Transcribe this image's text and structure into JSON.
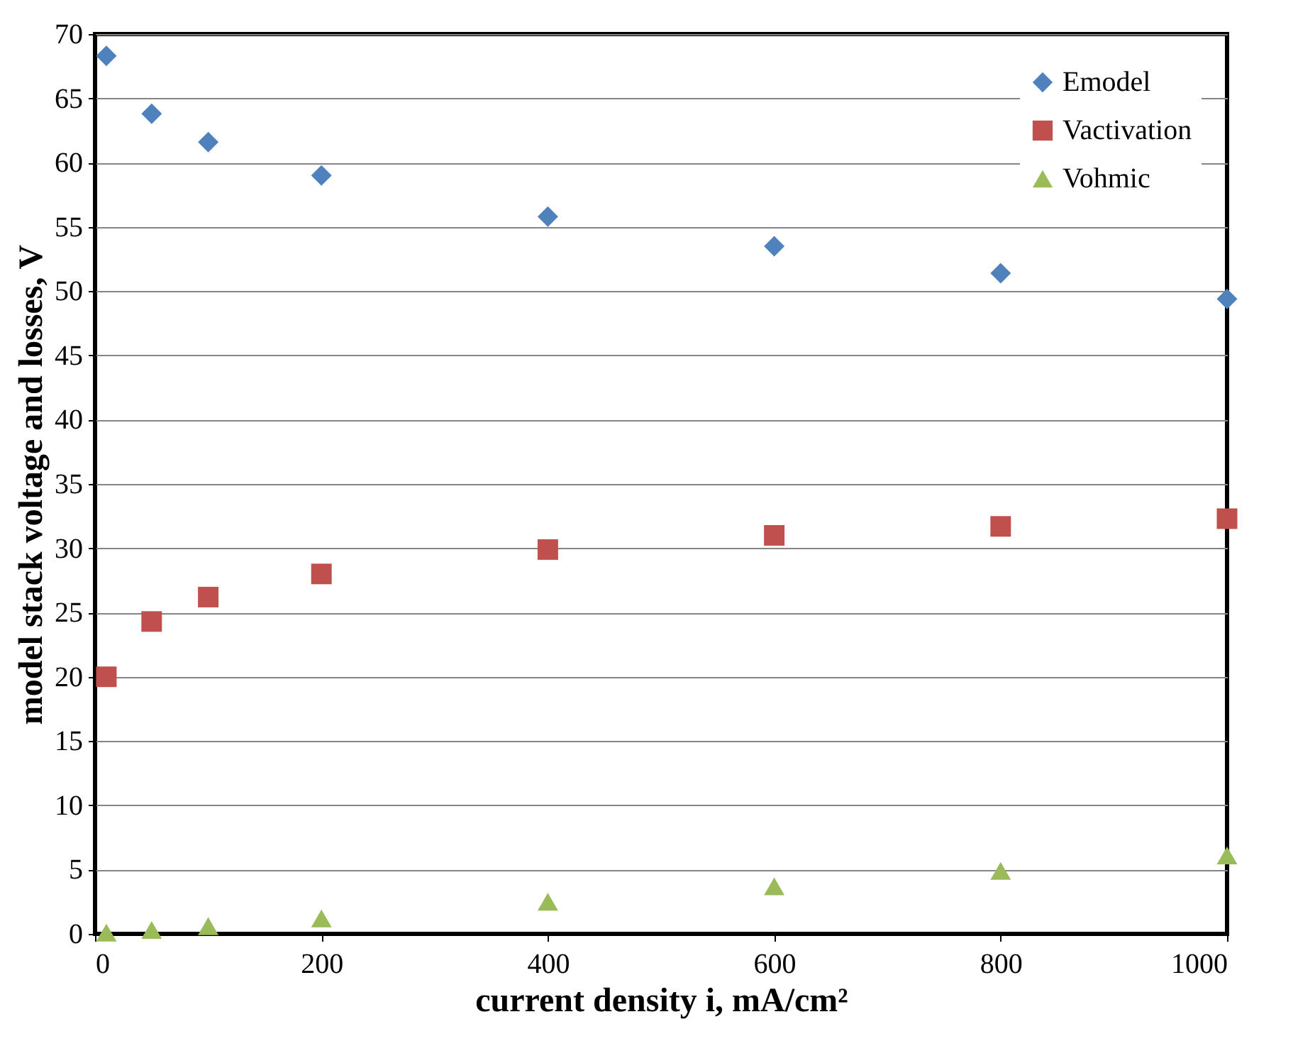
{
  "chart_data": {
    "type": "scatter",
    "xlabel": "current density i, mA/cm²",
    "ylabel": "model stack voltage and losses, V",
    "x": [
      10,
      50,
      100,
      200,
      400,
      600,
      800,
      1000
    ],
    "series": [
      {
        "name": "Emodel",
        "color": "#4f81bd",
        "marker": "diamond",
        "values": [
          68.3,
          63.8,
          61.6,
          59.0,
          55.8,
          53.5,
          51.4,
          49.4
        ]
      },
      {
        "name": "Vactivation",
        "color": "#c0504d",
        "marker": "square",
        "values": [
          20.0,
          24.3,
          26.2,
          28.0,
          29.9,
          31.0,
          31.7,
          32.3
        ]
      },
      {
        "name": "Vohmic",
        "color": "#9bbb59",
        "marker": "triangle",
        "values": [
          0.1,
          0.3,
          0.6,
          1.2,
          2.5,
          3.7,
          4.9,
          6.1
        ]
      }
    ],
    "xlim": [
      0,
      1000
    ],
    "xticks": [
      0,
      200,
      400,
      600,
      800,
      1000
    ],
    "ylim": [
      0,
      70
    ],
    "yticks": [
      0,
      5,
      10,
      15,
      20,
      25,
      30,
      35,
      40,
      45,
      50,
      55,
      60,
      65,
      70
    ],
    "grid": "y",
    "legend": "top right"
  }
}
